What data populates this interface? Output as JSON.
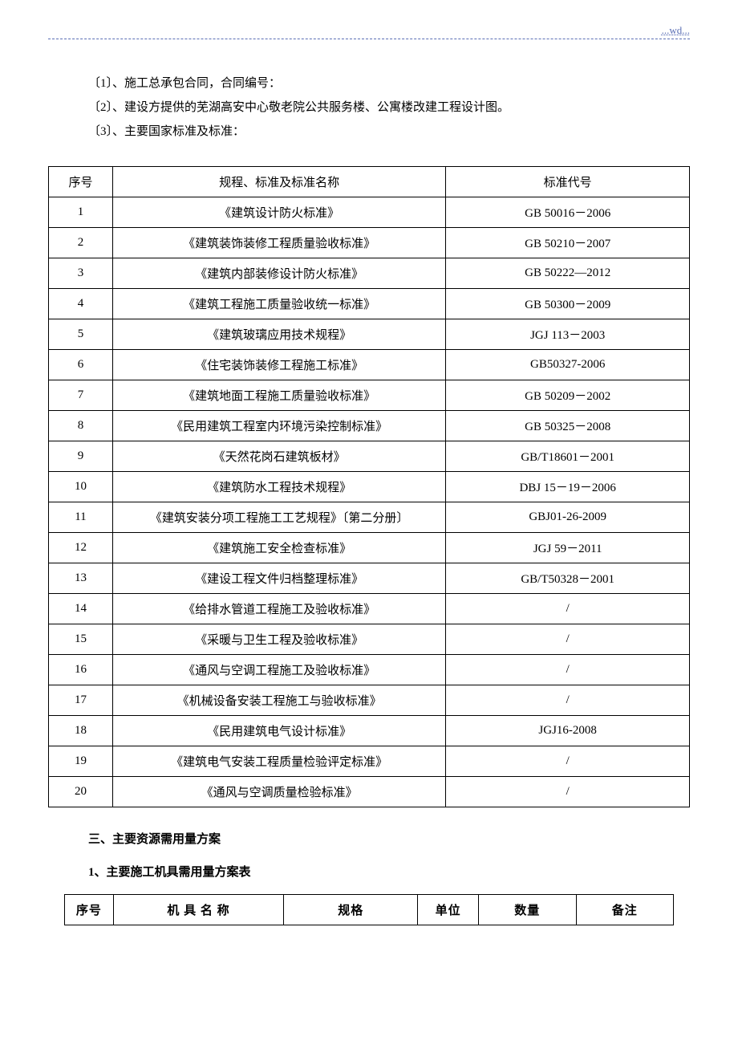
{
  "header_text": "...wd...",
  "intro_lines": {
    "line1": "〔1〕、施工总承包合同，合同编号：",
    "line2": "〔2〕、建设方提供的芜湖高安中心敬老院公共服务楼、公寓楼改建工程设计图。",
    "line3": "〔3〕、主要国家标准及标准："
  },
  "standards_table": {
    "headers": {
      "col1": "序号",
      "col2": "规程、标准及标准名称",
      "col3": "标准代号"
    },
    "rows": [
      {
        "num": "1",
        "name": "《建筑设计防火标准》",
        "code": "GB 50016－2006"
      },
      {
        "num": "2",
        "name": "《建筑装饰装修工程质量验收标准》",
        "code": "GB 50210－2007"
      },
      {
        "num": "3",
        "name": "《建筑内部装修设计防火标准》",
        "code": "GB 50222—2012"
      },
      {
        "num": "4",
        "name": "《建筑工程施工质量验收统一标准》",
        "code": "GB 50300－2009"
      },
      {
        "num": "5",
        "name": "《建筑玻璃应用技术规程》",
        "code": "JGJ 113－2003"
      },
      {
        "num": "6",
        "name": "《住宅装饰装修工程施工标准》",
        "code": "GB50327-2006"
      },
      {
        "num": "7",
        "name": "《建筑地面工程施工质量验收标准》",
        "code": "GB 50209－2002"
      },
      {
        "num": "8",
        "name": "《民用建筑工程室内环境污染控制标准》",
        "code": "GB 50325－2008"
      },
      {
        "num": "9",
        "name": "《天然花岗石建筑板材》",
        "code": "GB/T18601－2001"
      },
      {
        "num": "10",
        "name": "《建筑防水工程技术规程》",
        "code": "DBJ 15－19－2006"
      },
      {
        "num": "11",
        "name": "《建筑安装分项工程施工工艺规程》〔第二分册〕",
        "code": "GBJ01-26-2009"
      },
      {
        "num": "12",
        "name": "《建筑施工安全检查标准》",
        "code": "JGJ 59－2011"
      },
      {
        "num": "13",
        "name": "《建设工程文件归档整理标准》",
        "code": "GB/T50328－2001"
      },
      {
        "num": "14",
        "name": "《给排水管道工程施工及验收标准》",
        "code": "/"
      },
      {
        "num": "15",
        "name": "《采暖与卫生工程及验收标准》",
        "code": "/"
      },
      {
        "num": "16",
        "name": "《通风与空调工程施工及验收标准》",
        "code": "/"
      },
      {
        "num": "17",
        "name": "《机械设备安装工程施工与验收标准》",
        "code": "/"
      },
      {
        "num": "18",
        "name": "《民用建筑电气设计标准》",
        "code": "JGJ16-2008"
      },
      {
        "num": "19",
        "name": "《建筑电气安装工程质量检验评定标准》",
        "code": "/"
      },
      {
        "num": "20",
        "name": "《通风与空调质量检验标准》",
        "code": "/"
      }
    ]
  },
  "section3": {
    "title": "三、主要资源需用量方案",
    "sub1": "1、主要施工机具需用量方案表"
  },
  "tools_table": {
    "headers": {
      "col1": "序号",
      "col2": "机 具 名 称",
      "col3": "规格",
      "col4": "单位",
      "col5": "数量",
      "col6": "备注"
    }
  }
}
